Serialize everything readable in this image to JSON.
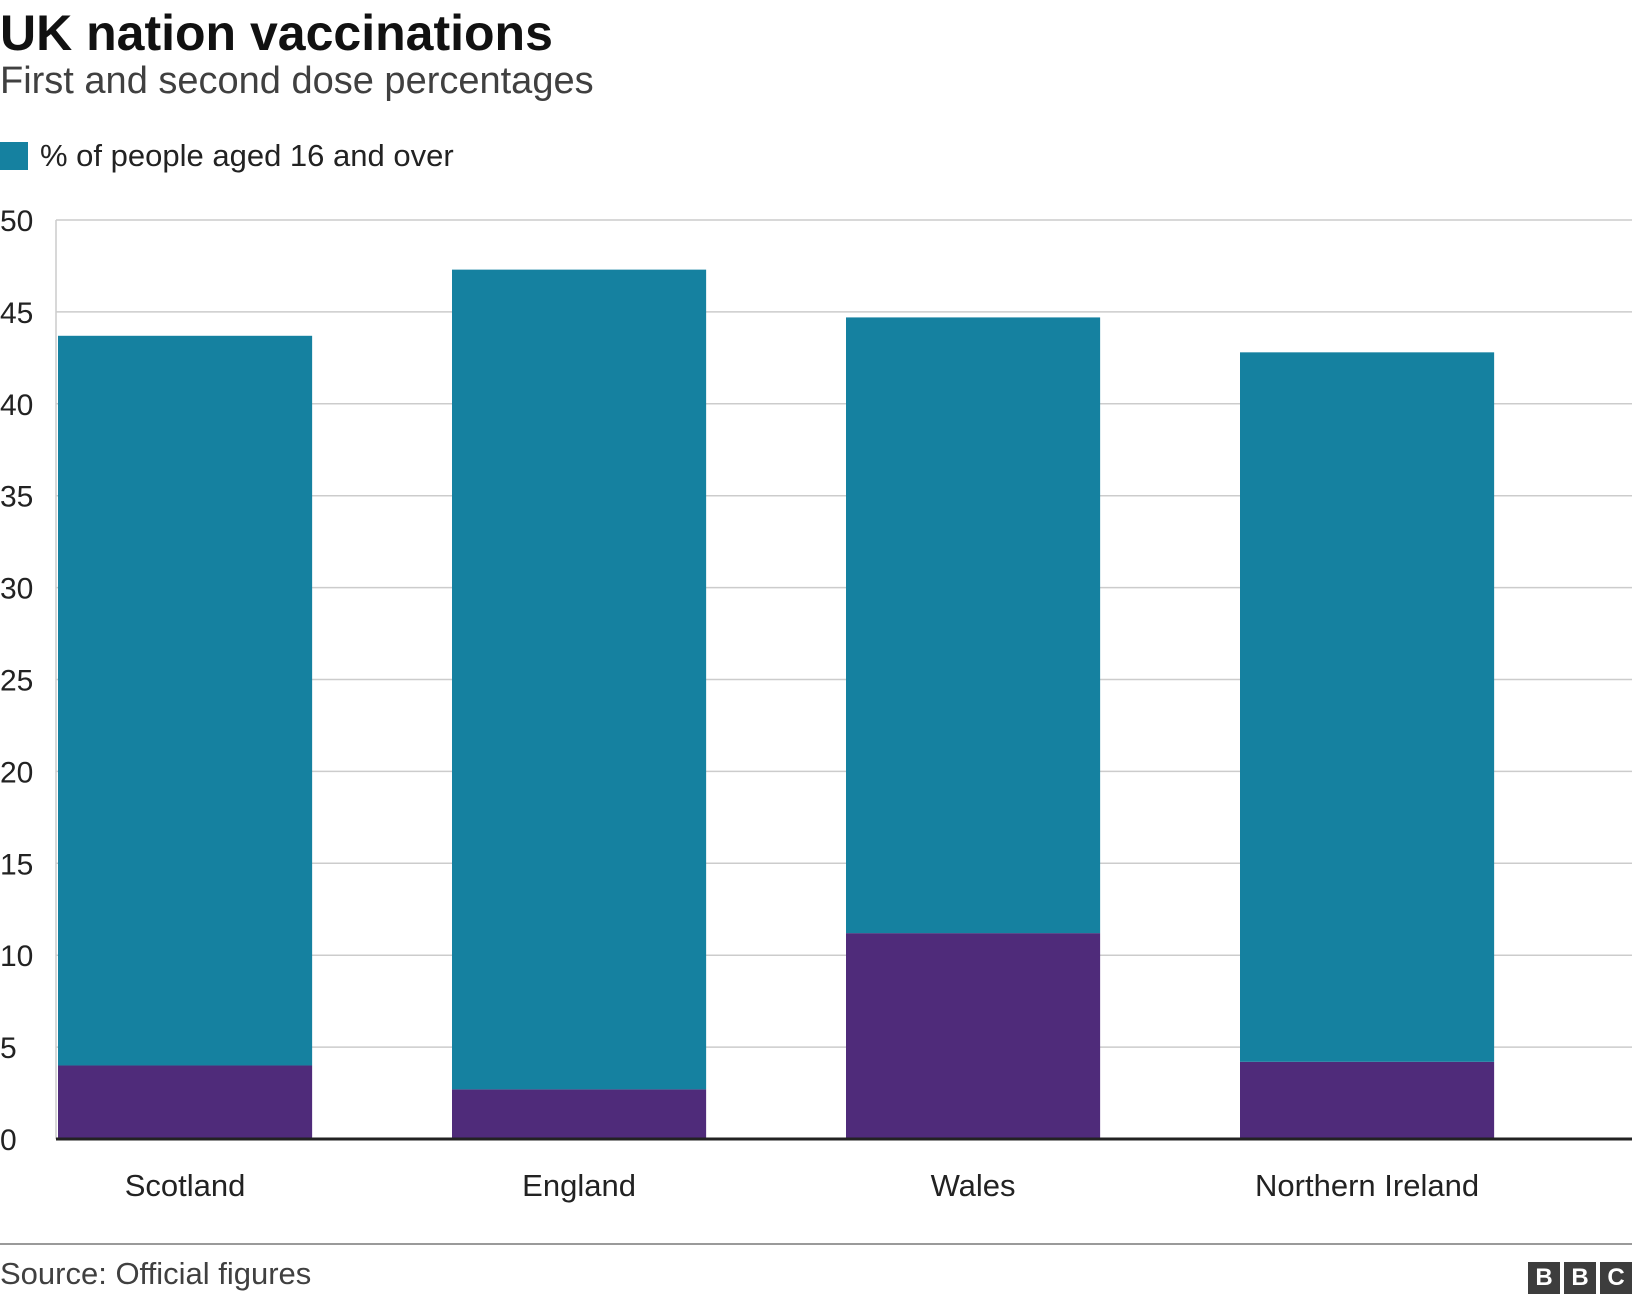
{
  "header": {
    "title": "UK nation vaccinations",
    "subtitle": "First and second dose percentages"
  },
  "legend": {
    "label": "% of people aged 16 and over"
  },
  "footer": {
    "source": "Source: Official figures",
    "brand_letters": [
      "B",
      "B",
      "C"
    ]
  },
  "colors": {
    "first_dose": "#1581a0",
    "second_dose": "#4f2b7a",
    "grid": "#cccccc",
    "axis": "#222222"
  },
  "chart_data": {
    "type": "bar",
    "stacked": true,
    "categories": [
      "Scotland",
      "England",
      "Wales",
      "Northern Ireland"
    ],
    "series": [
      {
        "values": [
          4.0,
          2.7,
          11.2,
          4.2
        ],
        "color": "#4f2b7a"
      },
      {
        "values": [
          39.7,
          44.6,
          33.5,
          38.6
        ],
        "color": "#1581a0"
      }
    ],
    "totals": [
      43.7,
      47.3,
      44.7,
      42.8
    ],
    "ylim": [
      0,
      50
    ],
    "yticks": [
      0,
      5,
      10,
      15,
      20,
      25,
      30,
      35,
      40,
      45,
      50
    ],
    "grid": true,
    "legend_position": "top-left"
  }
}
